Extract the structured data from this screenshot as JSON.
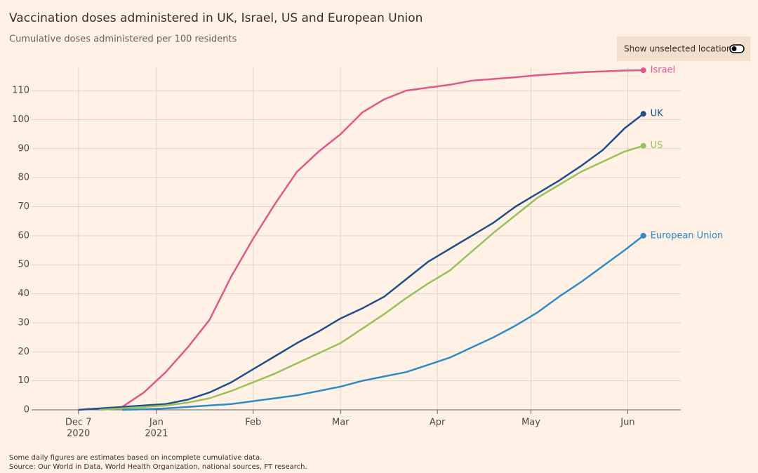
{
  "chart_data": {
    "type": "line",
    "title": "Vaccination doses administered in UK, Israel, US and European Union",
    "subtitle": "Cumulative doses administered per 100 residents",
    "toggle_label": "Show unselected locations",
    "notes": [
      "Some daily figures are estimates based on incomplete cumulative data.",
      "Source: Our World in Data, World Health Organization, national sources, FT research."
    ],
    "x": [
      "2020-12-07",
      "2020-12-14",
      "2020-12-21",
      "2020-12-28",
      "2021-01-04",
      "2021-01-11",
      "2021-01-18",
      "2021-01-25",
      "2021-02-01",
      "2021-02-08",
      "2021-02-15",
      "2021-02-22",
      "2021-03-01",
      "2021-03-08",
      "2021-03-15",
      "2021-03-22",
      "2021-03-29",
      "2021-04-05",
      "2021-04-12",
      "2021-04-19",
      "2021-04-26",
      "2021-05-03",
      "2021-05-10",
      "2021-05-17",
      "2021-05-24",
      "2021-05-31",
      "2021-06-06"
    ],
    "series": [
      {
        "name": "Israel",
        "color": "#e0588a",
        "values": [
          null,
          null,
          1,
          6,
          13,
          21.5,
          31,
          46,
          59,
          71,
          82,
          89,
          95,
          102.5,
          107,
          110,
          111,
          112,
          113.4,
          114,
          114.6,
          115.3,
          115.8,
          116.3,
          116.6,
          116.9,
          117
        ]
      },
      {
        "name": "UK",
        "color": "#1f4e8c",
        "values": [
          0,
          0.5,
          1,
          1.5,
          2,
          3.5,
          6,
          9.5,
          14,
          18.5,
          23,
          27,
          31.5,
          35,
          39,
          45,
          51,
          55.5,
          60,
          64.5,
          70,
          74.5,
          79,
          84,
          89.5,
          97,
          102
        ]
      },
      {
        "name": "US",
        "color": "#9bbf5a",
        "values": [
          null,
          0,
          0.5,
          1,
          1.5,
          2.5,
          4,
          6.5,
          9.5,
          12.5,
          16,
          19.5,
          23,
          28,
          33,
          38.5,
          43.5,
          48,
          54.5,
          61,
          67,
          73,
          77.5,
          82,
          85.5,
          89,
          91
        ]
      },
      {
        "name": "European Union",
        "color": "#2e8bc9",
        "values": [
          null,
          null,
          0,
          0.2,
          0.5,
          1,
          1.5,
          2,
          3,
          4,
          5,
          6.5,
          8,
          10,
          11.5,
          13,
          15.5,
          18,
          21.5,
          25,
          29,
          33.5,
          39,
          44,
          49.5,
          55,
          60
        ]
      }
    ],
    "xlim": [
      "2020-11-22",
      "2021-06-18"
    ],
    "xticks": [
      {
        "value": "2020-12-07",
        "label": [
          "Dec 7",
          "2020"
        ]
      },
      {
        "value": "2021-01-01",
        "label": [
          "Jan",
          "2021"
        ]
      },
      {
        "value": "2021-02-01",
        "label": "Feb"
      },
      {
        "value": "2021-03-01",
        "label": "Mar"
      },
      {
        "value": "2021-04-01",
        "label": "Apr"
      },
      {
        "value": "2021-05-01",
        "label": "May"
      },
      {
        "value": "2021-06-01",
        "label": "Jun"
      }
    ],
    "ylim": [
      0,
      118
    ],
    "yticks": [
      0,
      10,
      20,
      30,
      40,
      50,
      60,
      70,
      80,
      90,
      100,
      110
    ],
    "grid": true
  }
}
